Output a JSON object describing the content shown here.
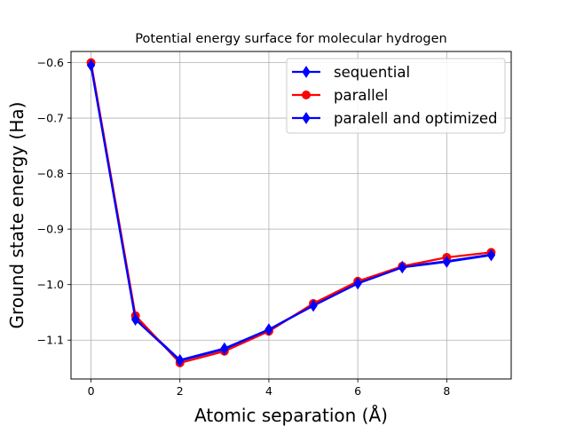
{
  "chart_data": {
    "type": "line",
    "title": "Potential energy surface for molecular hydrogen",
    "xlabel": "Atomic separation (Å)",
    "ylabel": "Ground state energy (Ha)",
    "xlim": [
      -0.45,
      9.45
    ],
    "ylim": [
      -1.17,
      -0.58
    ],
    "xticks": [
      0,
      2,
      4,
      6,
      8
    ],
    "yticks": [
      -0.6,
      -0.7,
      -0.8,
      -0.9,
      -1.0,
      -1.1
    ],
    "xtick_labels": [
      "0",
      "2",
      "4",
      "6",
      "8"
    ],
    "ytick_labels": [
      "−0.6",
      "−0.7",
      "−0.8",
      "−0.9",
      "−1.0",
      "−1.1"
    ],
    "grid": true,
    "legend_position": "top-right",
    "x": [
      0,
      1,
      2,
      3,
      4,
      5,
      6,
      7,
      8,
      9
    ],
    "series": [
      {
        "name": "sequential",
        "color": "#0000ff",
        "marker": "diamond",
        "values": [
          -0.604,
          -1.061,
          -1.136,
          -1.115,
          -1.081,
          -1.037,
          -0.997,
          -0.968,
          -0.958,
          -0.946
        ]
      },
      {
        "name": "parallel",
        "color": "#ff0000",
        "marker": "circle",
        "values": [
          -0.6,
          -1.056,
          -1.141,
          -1.12,
          -1.084,
          -1.034,
          -0.994,
          -0.967,
          -0.951,
          -0.942
        ]
      },
      {
        "name": "paralell and optimized",
        "color": "#0000ff",
        "marker": "diamond",
        "values": [
          -0.605,
          -1.063,
          -1.137,
          -1.116,
          -1.081,
          -1.038,
          -0.998,
          -0.969,
          -0.959,
          -0.947
        ]
      }
    ]
  }
}
